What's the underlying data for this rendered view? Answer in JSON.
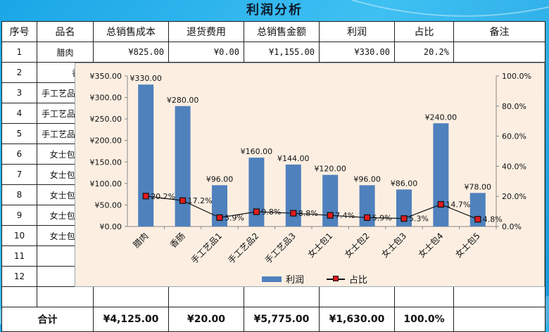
{
  "sheet": {
    "title": "利润分析",
    "headers": [
      "序号",
      "品名",
      "总销售成本",
      "退货费用",
      "总销售金额",
      "利润",
      "占比",
      "备注"
    ],
    "row1": {
      "no": "1",
      "name": "腊肉",
      "cost": "¥825.00",
      "return_fee": "¥0.00",
      "sales": "¥1,155.00",
      "profit": "¥330.00",
      "ratio": "20.2%",
      "note": ""
    },
    "rows": [
      {
        "no": "2",
        "name": "香肠"
      },
      {
        "no": "3",
        "name": "手工艺品1"
      },
      {
        "no": "4",
        "name": "手工艺品2"
      },
      {
        "no": "5",
        "name": "手工艺品3"
      },
      {
        "no": "6",
        "name": "女士包1"
      },
      {
        "no": "7",
        "name": "女士包2"
      },
      {
        "no": "8",
        "name": "女士包3"
      },
      {
        "no": "9",
        "name": "女士包4"
      },
      {
        "no": "10",
        "name": "女士包5"
      },
      {
        "no": "11",
        "name": ""
      },
      {
        "no": "12",
        "name": ""
      }
    ],
    "total": {
      "label": "合计",
      "cost": "¥4,125.00",
      "return_fee": "¥20.00",
      "sales": "¥5,775.00",
      "profit": "¥1,630.00",
      "ratio": "100.0%",
      "note": ""
    }
  },
  "chart_data": {
    "type": "bar",
    "categories": [
      "腊肉",
      "香肠",
      "手工艺品1",
      "手工艺品2",
      "手工艺品3",
      "女士包1",
      "女士包2",
      "女士包3",
      "女士包4",
      "女士包5"
    ],
    "series": [
      {
        "name": "利润",
        "kind": "bar",
        "axis": "left",
        "values": [
          330,
          280,
          96,
          160,
          144,
          120,
          96,
          86,
          240,
          78
        ],
        "labels": [
          "¥330.00",
          "¥280.00",
          "¥96.00",
          "¥160.00",
          "¥144.00",
          "¥120.00",
          "¥96.00",
          "¥86.00",
          "¥240.00",
          "¥78.00"
        ]
      },
      {
        "name": "占比",
        "kind": "line",
        "axis": "right",
        "values": [
          20.2,
          17.2,
          5.9,
          9.8,
          8.8,
          7.4,
          5.9,
          5.3,
          14.7,
          4.8
        ],
        "labels": [
          "20.2%",
          "17.2%",
          "5.9%",
          "9.8%",
          "8.8%",
          "7.4%",
          "5.9%",
          "5.3%",
          "14.7%",
          "4.8%"
        ]
      }
    ],
    "y_left": {
      "min": 0,
      "max": 350,
      "step": 50,
      "ticks": [
        "¥0.00",
        "¥50.00",
        "¥100.00",
        "¥150.00",
        "¥200.00",
        "¥250.00",
        "¥300.00",
        "¥350.00"
      ]
    },
    "y_right": {
      "min": 0,
      "max": 100,
      "step": 20,
      "ticks": [
        "0.0%",
        "20.0%",
        "40.0%",
        "60.0%",
        "80.0%",
        "100.0%"
      ]
    },
    "grid": false,
    "legend_position": "bottom",
    "colors": {
      "bar": "#4f81bd",
      "line": "#111111",
      "marker": "#e41a1c",
      "plot_bg": "#fcefe2"
    }
  }
}
